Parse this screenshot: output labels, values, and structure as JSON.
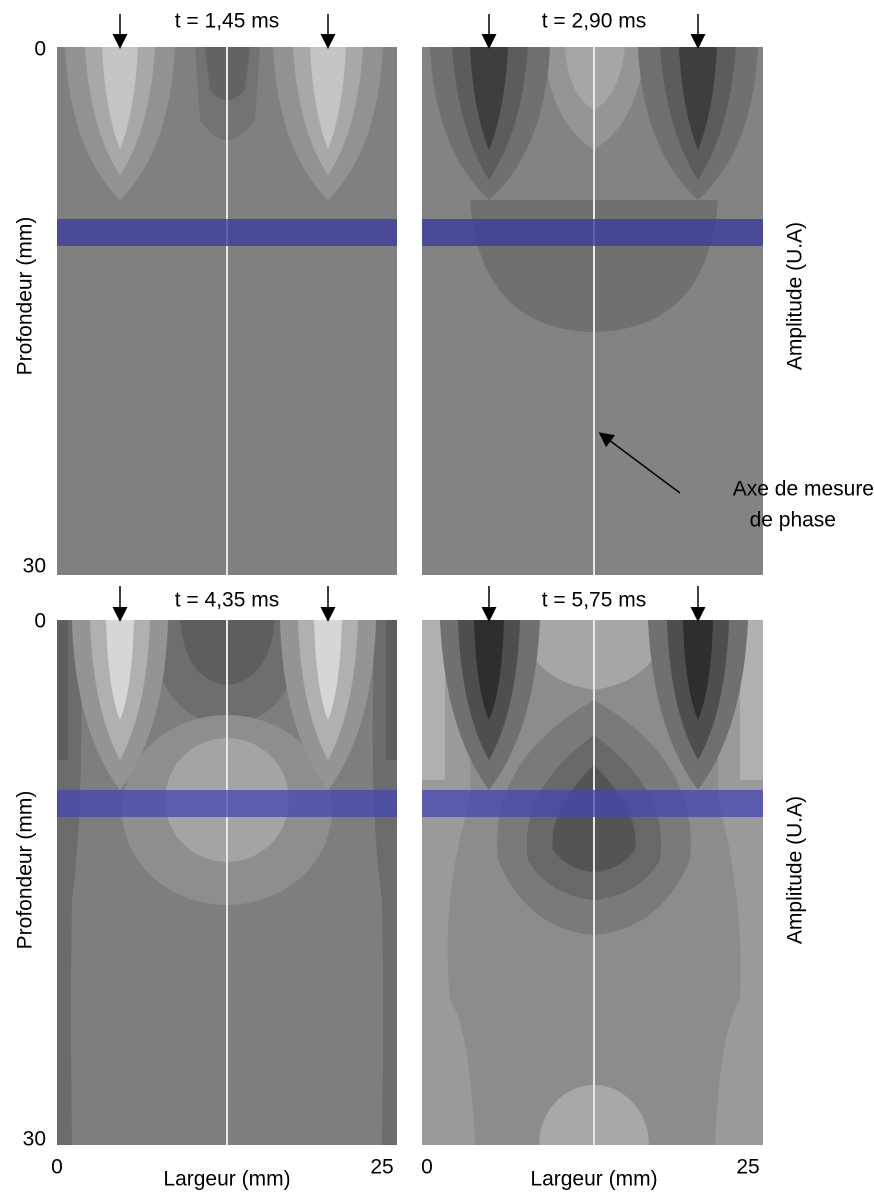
{
  "panels": [
    {
      "title": "t = 1,45 ms"
    },
    {
      "title": "t = 2,90 ms"
    },
    {
      "title": "t = 4,35 ms"
    },
    {
      "title": "t = 5,75 ms"
    }
  ],
  "y_axis_label": "Profondeur (mm)",
  "y2_axis_label": "Amplitude (U.A)",
  "x_axis_label": "Largeur (mm)",
  "y_ticks": [
    "0",
    "30"
  ],
  "x_ticks": [
    "0",
    "25"
  ],
  "annotation": [
    "Axe de mesure",
    "de phase"
  ]
}
